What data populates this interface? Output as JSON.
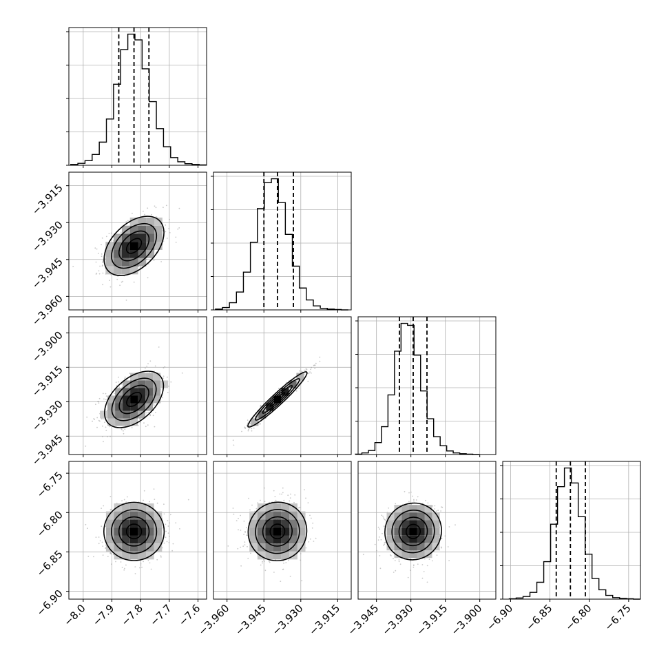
{
  "chart_data": {
    "type": "corner",
    "parameters": [
      {
        "range": [
          -8.05,
          -7.57
        ],
        "median": -7.823,
        "q16": -7.876,
        "q84": -7.771,
        "ticks": [
          -8.0,
          -7.9,
          -7.8,
          -7.7,
          -7.6
        ],
        "tick_labels": [
          "−8.0",
          "−7.9",
          "−7.8",
          "−7.7",
          "−7.6"
        ]
      },
      {
        "range": [
          -3.9655,
          -3.9095
        ],
        "median": -3.9395,
        "q16": -3.945,
        "q84": -3.933,
        "ticks": [
          -3.96,
          -3.945,
          -3.93,
          -3.915
        ],
        "tick_labels": [
          "−3.960",
          "−3.945",
          "−3.930",
          "−3.915"
        ]
      },
      {
        "range": [
          -3.953,
          -3.893
        ],
        "median": -3.929,
        "q16": -3.935,
        "q84": -3.923,
        "ticks": [
          -3.945,
          -3.93,
          -3.915,
          -3.9
        ],
        "tick_labels": [
          "−3.945",
          "−3.930",
          "−3.915",
          "−3.900"
        ]
      },
      {
        "range": [
          -6.91,
          -6.735
        ],
        "median": -6.824,
        "q16": -6.842,
        "q84": -6.805,
        "ticks": [
          -6.9,
          -6.85,
          -6.8,
          -6.75
        ],
        "tick_labels": [
          "−6.90",
          "−6.85",
          "−6.80",
          "−6.75"
        ]
      }
    ],
    "histograms": [
      {
        "counts": [
          2,
          5,
          12,
          28,
          60,
          120,
          210,
          300,
          340,
          325,
          250,
          165,
          95,
          48,
          20,
          9,
          4,
          2,
          1
        ]
      },
      {
        "counts": [
          2,
          6,
          18,
          45,
          95,
          170,
          255,
          320,
          330,
          270,
          190,
          110,
          55,
          25,
          10,
          4,
          2,
          1,
          0
        ]
      },
      {
        "counts": [
          1,
          4,
          10,
          30,
          70,
          150,
          260,
          330,
          325,
          250,
          160,
          90,
          45,
          22,
          9,
          4,
          2,
          1,
          0
        ]
      },
      {
        "counts": [
          1,
          3,
          7,
          18,
          45,
          100,
          200,
          300,
          350,
          310,
          220,
          120,
          55,
          25,
          10,
          4,
          2,
          1,
          0
        ]
      }
    ],
    "correlations": {
      "1-0": 0.45,
      "2-0": 0.48,
      "2-1": 0.97,
      "3-0": 0.0,
      "3-1": 0.02,
      "3-2": 0.03
    },
    "quantiles": [
      0.16,
      0.5,
      0.84
    ],
    "grid": true,
    "colors": {
      "ink": "#000000",
      "grid": "#b0b0b0",
      "points": "#9a9a9a"
    }
  }
}
